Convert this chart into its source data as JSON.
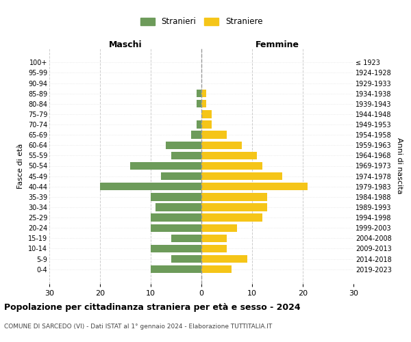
{
  "age_groups": [
    "0-4",
    "5-9",
    "10-14",
    "15-19",
    "20-24",
    "25-29",
    "30-34",
    "35-39",
    "40-44",
    "45-49",
    "50-54",
    "55-59",
    "60-64",
    "65-69",
    "70-74",
    "75-79",
    "80-84",
    "85-89",
    "90-94",
    "95-99",
    "100+"
  ],
  "birth_years": [
    "2019-2023",
    "2014-2018",
    "2009-2013",
    "2004-2008",
    "1999-2003",
    "1994-1998",
    "1989-1993",
    "1984-1988",
    "1979-1983",
    "1974-1978",
    "1969-1973",
    "1964-1968",
    "1959-1963",
    "1954-1958",
    "1949-1953",
    "1944-1948",
    "1939-1943",
    "1934-1938",
    "1929-1933",
    "1924-1928",
    "≤ 1923"
  ],
  "maschi": [
    10,
    6,
    10,
    6,
    10,
    10,
    9,
    10,
    20,
    8,
    14,
    6,
    7,
    2,
    1,
    0,
    1,
    1,
    0,
    0,
    0
  ],
  "femmine": [
    6,
    9,
    5,
    5,
    7,
    12,
    13,
    13,
    21,
    16,
    12,
    11,
    8,
    5,
    2,
    2,
    1,
    1,
    0,
    0,
    0
  ],
  "maschi_color": "#6d9b5a",
  "femmine_color": "#f5c518",
  "background_color": "#ffffff",
  "grid_color": "#cccccc",
  "title": "Popolazione per cittadinanza straniera per età e sesso - 2024",
  "subtitle": "COMUNE DI SARCEDO (VI) - Dati ISTAT al 1° gennaio 2024 - Elaborazione TUTTITALIA.IT",
  "xlabel_left": "Maschi",
  "xlabel_right": "Femmine",
  "ylabel_left": "Fasce di età",
  "ylabel_right": "Anni di nascita",
  "legend_maschi": "Stranieri",
  "legend_femmine": "Straniere",
  "xlim": 30,
  "bar_height": 0.75
}
